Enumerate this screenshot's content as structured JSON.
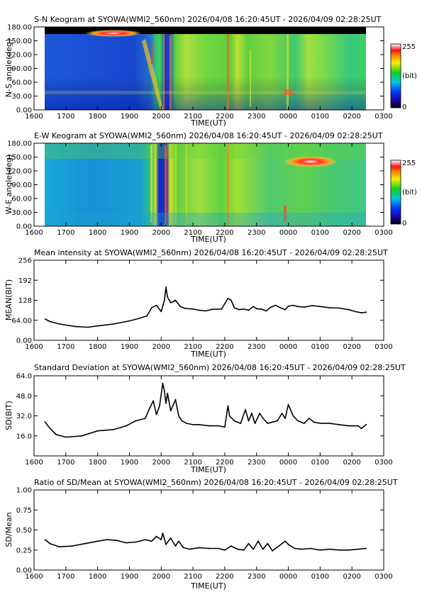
{
  "chart_data": [
    {
      "type": "heatmap",
      "title": "S-N Keogram at SYOWA(WMI2_560nm)     2026/04/08 16:20:45UT - 2026/04/09 02:28:25UT",
      "xlabel": "TIME(UT)",
      "ylabel": "N-S angle(deg)",
      "xticks": [
        "1600",
        "1700",
        "1800",
        "1900",
        "2000",
        "2100",
        "2200",
        "2300",
        "0000",
        "0100",
        "0200",
        "0300"
      ],
      "yticks": [
        "0.00",
        "30.00",
        "60.00",
        "90.00",
        "120.00",
        "150.00",
        "180.00"
      ],
      "ylim": [
        0,
        180
      ],
      "colorbar": {
        "max_label": "255",
        "unit_label": "(bit)",
        "min_label": "0"
      }
    },
    {
      "type": "heatmap",
      "title": "E-W Keogram at SYOWA(WMI2_560nm)     2026/04/08 16:20:45UT - 2026/04/09 02:28:25UT",
      "xlabel": "TIME(UT)",
      "ylabel": "W-E angle(deg)",
      "xticks": [
        "1600",
        "1700",
        "1800",
        "1900",
        "2000",
        "2100",
        "2200",
        "2300",
        "0000",
        "0100",
        "0200",
        "0300"
      ],
      "yticks": [
        "0.00",
        "30.00",
        "60.00",
        "90.00",
        "120.00",
        "150.00",
        "180.00"
      ],
      "ylim": [
        0,
        180
      ],
      "colorbar": {
        "max_label": "255",
        "unit_label": "(bit)",
        "min_label": "0"
      }
    },
    {
      "type": "line",
      "title": "Mean intensity at SYOWA(WMI2_560nm)     2026/04/08 16:20:45UT - 2026/04/09 02:28:25UT",
      "xlabel": "TIME(UT)",
      "ylabel": "MEAN(BIT)",
      "xticks": [
        "1600",
        "1700",
        "1800",
        "1900",
        "2000",
        "2100",
        "2200",
        "2300",
        "0000",
        "0100",
        "0200",
        "0300"
      ],
      "yticks": [
        "0.00",
        "64.00",
        "128",
        "192",
        "256"
      ],
      "ylim": [
        0,
        256
      ],
      "x": [
        16.35,
        16.5,
        16.8,
        17.3,
        17.7,
        18.0,
        18.5,
        19.0,
        19.3,
        19.55,
        19.7,
        19.85,
        20.0,
        20.1,
        20.15,
        20.2,
        20.3,
        20.45,
        20.6,
        20.75,
        21.0,
        21.2,
        21.4,
        21.6,
        21.9,
        22.1,
        22.2,
        22.3,
        22.45,
        22.6,
        22.75,
        22.9,
        23.0,
        23.15,
        23.3,
        23.45,
        23.6,
        23.75,
        23.9,
        24.0,
        24.15,
        24.3,
        24.5,
        24.75,
        25.0,
        25.3,
        25.6,
        25.9,
        26.1,
        26.3,
        26.45
      ],
      "values": [
        68,
        60,
        52,
        44,
        42,
        46,
        52,
        62,
        70,
        78,
        104,
        112,
        92,
        128,
        170,
        138,
        120,
        128,
        108,
        102,
        100,
        96,
        94,
        99,
        100,
        134,
        128,
        104,
        98,
        100,
        96,
        108,
        101,
        100,
        94,
        106,
        112,
        104,
        98,
        109,
        112,
        108,
        106,
        111,
        108,
        104,
        103,
        98,
        92,
        88,
        90
      ]
    },
    {
      "type": "line",
      "title": "Standard Deviation at SYOWA(WMI2_560nm)     2026/04/08 16:20:45UT - 2026/04/09 02:28:25UT",
      "xlabel": "TIME(UT)",
      "ylabel": "SD(BIT)",
      "xticks": [
        "1600",
        "1700",
        "1800",
        "1900",
        "2000",
        "2100",
        "2200",
        "2300",
        "0000",
        "0100",
        "0200",
        "0300"
      ],
      "yticks": [
        "16.0",
        "32.0",
        "48.0",
        "64.0"
      ],
      "ylim": [
        0,
        64
      ],
      "x": [
        16.35,
        16.5,
        16.7,
        17.0,
        17.5,
        18.0,
        18.5,
        18.9,
        19.2,
        19.5,
        19.6,
        19.75,
        19.85,
        19.95,
        20.05,
        20.1,
        20.15,
        20.2,
        20.3,
        20.45,
        20.55,
        20.65,
        20.8,
        21.0,
        21.2,
        21.5,
        21.8,
        22.0,
        22.1,
        22.15,
        22.3,
        22.5,
        22.65,
        22.75,
        22.85,
        22.95,
        23.1,
        23.2,
        23.35,
        23.5,
        23.65,
        23.8,
        23.9,
        24.0,
        24.15,
        24.3,
        24.5,
        24.65,
        24.8,
        25.0,
        25.3,
        25.6,
        25.9,
        26.2,
        26.3,
        26.45
      ],
      "values": [
        27,
        22,
        17,
        15,
        16,
        20,
        21,
        24,
        28,
        30,
        36,
        44,
        33,
        40,
        58,
        52,
        42,
        50,
        36,
        45,
        32,
        28,
        26,
        25,
        25,
        24,
        24,
        23,
        40,
        32,
        28,
        26,
        37,
        28,
        34,
        26,
        34,
        30,
        26,
        27,
        28,
        34,
        30,
        41,
        32,
        28,
        26,
        30,
        27,
        26,
        26,
        25,
        24,
        24,
        22,
        25
      ]
    },
    {
      "type": "line",
      "title": "Ratio of SD/Mean at SYOWA(WMI2_560nm)     2026/04/08 16:20:45UT - 2026/04/09 02:28:25UT",
      "xlabel": "TIME(UT)",
      "ylabel": "SD/Mean",
      "xticks": [
        "1600",
        "1700",
        "1800",
        "1900",
        "2000",
        "2100",
        "2200",
        "2300",
        "0000",
        "0100",
        "0200",
        "0300"
      ],
      "yticks": [
        "0.00",
        "0.25",
        "0.50",
        "0.75",
        "1.00"
      ],
      "ylim": [
        0,
        1
      ],
      "x": [
        16.35,
        16.5,
        16.8,
        17.2,
        17.6,
        18.0,
        18.3,
        18.6,
        18.9,
        19.2,
        19.5,
        19.7,
        19.85,
        20.0,
        20.05,
        20.15,
        20.3,
        20.45,
        20.55,
        20.7,
        20.9,
        21.2,
        21.5,
        21.8,
        22.0,
        22.2,
        22.4,
        22.6,
        22.75,
        22.9,
        23.05,
        23.2,
        23.35,
        23.5,
        23.7,
        23.9,
        24.0,
        24.2,
        24.4,
        24.7,
        25.0,
        25.3,
        25.6,
        25.9,
        26.2,
        26.45
      ],
      "values": [
        0.38,
        0.33,
        0.29,
        0.3,
        0.33,
        0.36,
        0.38,
        0.37,
        0.34,
        0.35,
        0.38,
        0.36,
        0.42,
        0.38,
        0.46,
        0.32,
        0.4,
        0.3,
        0.36,
        0.28,
        0.26,
        0.28,
        0.27,
        0.27,
        0.25,
        0.3,
        0.26,
        0.25,
        0.33,
        0.26,
        0.36,
        0.26,
        0.33,
        0.24,
        0.3,
        0.36,
        0.32,
        0.27,
        0.26,
        0.27,
        0.25,
        0.26,
        0.25,
        0.25,
        0.26,
        0.27
      ]
    }
  ]
}
